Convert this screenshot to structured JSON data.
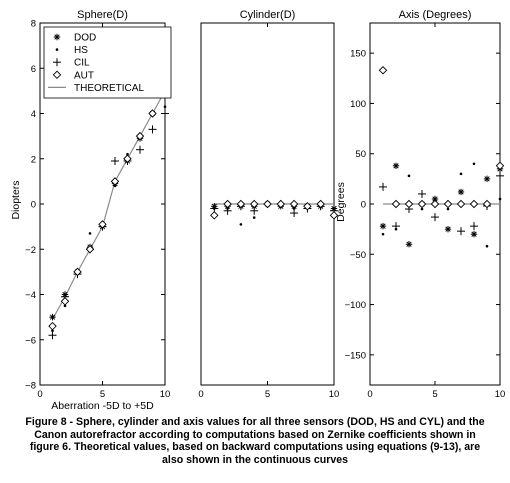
{
  "chart_data": [
    {
      "type": "scatter",
      "title": "Sphere(D)",
      "xlabel": "Aberration -5D to +5D",
      "ylabel": "Diopters",
      "xlim": [
        0,
        10
      ],
      "ylim": [
        -8,
        8
      ],
      "xticks": [
        0,
        5,
        10
      ],
      "yticks": [
        -8,
        -6,
        -4,
        -2,
        0,
        2,
        4,
        6,
        8
      ],
      "grid": false,
      "legend_position": "top-left",
      "legend": [
        "DOD",
        "HS",
        "CIL",
        "AUT",
        "THEORETICAL"
      ],
      "series": [
        {
          "name": "DOD",
          "marker": "asterisk",
          "x": [
            1,
            2,
            3,
            4,
            5,
            6,
            7,
            8,
            9,
            10
          ],
          "y": [
            -5.0,
            -4.0,
            -3.0,
            -1.9,
            -1.0,
            0.9,
            1.9,
            2.9,
            4.0,
            5.1
          ]
        },
        {
          "name": "HS",
          "marker": "dot",
          "x": [
            1,
            2,
            3,
            4,
            5,
            6,
            7,
            8,
            9,
            10
          ],
          "y": [
            -5.6,
            -4.5,
            -2.9,
            -1.3,
            -0.9,
            0.8,
            2.2,
            3.0,
            4.1,
            4.3
          ]
        },
        {
          "name": "CIL",
          "marker": "plus",
          "x": [
            1,
            2,
            3,
            4,
            5,
            6,
            7,
            8,
            9,
            10
          ],
          "y": [
            -5.8,
            -4.1,
            -3.1,
            -2.0,
            -1.0,
            1.9,
            1.9,
            2.4,
            3.3,
            4.0
          ]
        },
        {
          "name": "AUT",
          "marker": "diamond",
          "x": [
            1,
            2,
            3,
            4,
            5,
            6,
            7,
            8,
            9,
            10
          ],
          "y": [
            -5.4,
            -4.3,
            -3.0,
            -2.0,
            -0.9,
            1.0,
            2.0,
            3.0,
            4.0,
            5.0
          ]
        },
        {
          "name": "THEORETICAL",
          "marker": "line",
          "x": [
            1,
            2,
            3,
            4,
            5,
            6,
            7,
            8,
            9,
            10
          ],
          "y": [
            -5.1,
            -4.1,
            -3.0,
            -2.0,
            -1.0,
            1.0,
            2.0,
            3.0,
            4.0,
            5.0
          ]
        }
      ]
    },
    {
      "type": "scatter",
      "title": "Cylinder(D)",
      "xlim": [
        0,
        10
      ],
      "ylim": [
        -8,
        8
      ],
      "xticks": [
        0,
        5,
        10
      ],
      "grid": false,
      "series": [
        {
          "name": "DOD",
          "marker": "asterisk",
          "x": [
            1,
            2,
            3,
            4,
            5,
            6,
            7,
            8,
            9,
            10
          ],
          "y": [
            -0.1,
            -0.1,
            -0.1,
            -0.1,
            0.0,
            -0.1,
            -0.1,
            -0.1,
            -0.1,
            -0.2
          ]
        },
        {
          "name": "HS",
          "marker": "dot",
          "x": [
            1,
            2,
            3,
            4,
            5,
            6,
            7,
            8,
            9,
            10
          ],
          "y": [
            -0.2,
            -0.2,
            -0.9,
            -0.6,
            -0.1,
            0.0,
            -0.2,
            -0.1,
            0.0,
            -0.5
          ]
        },
        {
          "name": "CIL",
          "marker": "plus",
          "x": [
            1,
            2,
            3,
            4,
            5,
            6,
            7,
            8,
            9,
            10
          ],
          "y": [
            -0.2,
            -0.3,
            -0.1,
            -0.3,
            0.0,
            0.0,
            -0.4,
            -0.2,
            -0.1,
            -0.3
          ]
        },
        {
          "name": "AUT",
          "marker": "diamond",
          "x": [
            1,
            2,
            3,
            4,
            5,
            6,
            7,
            8,
            9,
            10
          ],
          "y": [
            -0.5,
            0.0,
            0.0,
            0.0,
            0.0,
            0.0,
            0.0,
            -0.1,
            0.0,
            -0.5
          ]
        },
        {
          "name": "THEORETICAL",
          "marker": "line",
          "x": [
            1,
            10
          ],
          "y": [
            0,
            0
          ]
        }
      ]
    },
    {
      "type": "scatter",
      "title": "Axis (Degrees)",
      "ylabel": "Degrees",
      "xlim": [
        0,
        10
      ],
      "ylim": [
        -180,
        180
      ],
      "xticks": [
        0,
        5,
        10
      ],
      "yticks": [
        -150,
        -100,
        -50,
        0,
        50,
        100,
        150
      ],
      "grid": false,
      "series": [
        {
          "name": "DOD",
          "marker": "asterisk",
          "x": [
            1,
            2,
            3,
            4,
            5,
            6,
            7,
            8,
            9,
            10
          ],
          "y": [
            -22,
            38,
            -40,
            0,
            5,
            -25,
            12,
            -30,
            25,
            35
          ]
        },
        {
          "name": "HS",
          "marker": "dot",
          "x": [
            1,
            2,
            3,
            4,
            5,
            6,
            7,
            8,
            9,
            10
          ],
          "y": [
            -30,
            -25,
            28,
            -5,
            0,
            -5,
            30,
            40,
            -42,
            5
          ]
        },
        {
          "name": "CIL",
          "marker": "plus",
          "x": [
            1,
            2,
            3,
            4,
            5,
            6,
            7,
            8,
            9,
            10
          ],
          "y": [
            17,
            -22,
            -5,
            10,
            -13,
            0,
            -27,
            -22,
            -2,
            28
          ]
        },
        {
          "name": "AUT",
          "marker": "diamond",
          "x": [
            1,
            2,
            3,
            4,
            5,
            6,
            7,
            8,
            9,
            10
          ],
          "y": [
            133,
            0,
            0,
            0,
            0,
            0,
            0,
            0,
            0,
            38
          ]
        },
        {
          "name": "THEORETICAL",
          "marker": "line",
          "x": [
            1,
            10
          ],
          "y": [
            0,
            0
          ]
        }
      ]
    }
  ],
  "caption": "Figure 8 - Sphere, cylinder and axis values for all three sensors (DOD, HS and CYL) and the Canon autorefractor according to computations based on Zernike coefficients shown in figure 6. Theoretical values, based on backward computations using equations (9-13), are also shown in the continuous curves"
}
